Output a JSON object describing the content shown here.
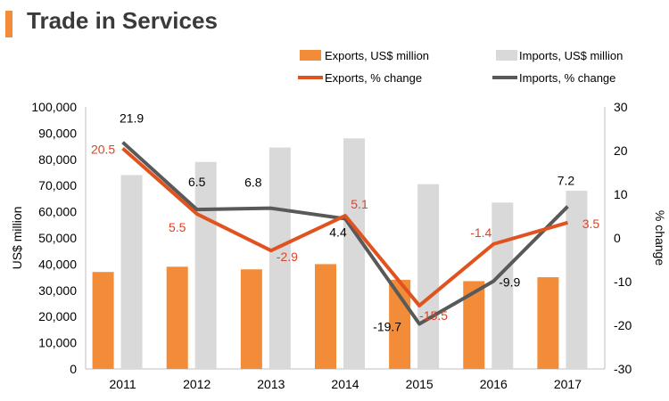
{
  "page_title": "Trade in Services",
  "colors": {
    "accent": "#f28c38",
    "exports_bar": "#f28c38",
    "imports_bar": "#d9d9d9",
    "exports_line": "#e0531f",
    "imports_line": "#595959",
    "exports_label": "#d9442b",
    "imports_label": "#000000"
  },
  "chart_data": {
    "type": "bar",
    "title": "Trade in Services",
    "categories": [
      "2011",
      "2012",
      "2013",
      "2014",
      "2015",
      "2016",
      "2017"
    ],
    "series": [
      {
        "name": "Exports, US$ million",
        "kind": "bar",
        "axis": "left",
        "values": [
          37000,
          39000,
          38000,
          40000,
          34000,
          33500,
          35000
        ]
      },
      {
        "name": "Imports, US$ million",
        "kind": "bar",
        "axis": "left",
        "values": [
          74000,
          79000,
          84500,
          88000,
          70500,
          63500,
          68000
        ]
      },
      {
        "name": "Exports, % change",
        "kind": "line",
        "axis": "right",
        "values": [
          20.5,
          5.5,
          -2.9,
          5.1,
          -15.5,
          -1.4,
          3.5
        ],
        "labels": [
          "20.5",
          "5.5",
          "-2.9",
          "5.1",
          "-15.5",
          "-1.4",
          "3.5"
        ]
      },
      {
        "name": "Imports, % change",
        "kind": "line",
        "axis": "right",
        "values": [
          21.9,
          6.5,
          6.8,
          4.4,
          -19.7,
          -9.9,
          7.2
        ],
        "labels": [
          "21.9",
          "6.5",
          "6.8",
          "4.4",
          "-19.7",
          "-9.9",
          "7.2"
        ]
      }
    ],
    "ylabel": "US$ million",
    "y2label": "% change",
    "ylim": [
      0,
      100000
    ],
    "y2lim": [
      -30,
      30
    ],
    "yticks": [
      "0",
      "10,000",
      "20,000",
      "30,000",
      "40,000",
      "50,000",
      "60,000",
      "70,000",
      "80,000",
      "90,000",
      "100,000"
    ],
    "y2ticks": [
      "-30",
      "-20",
      "-10",
      "0",
      "10",
      "20",
      "30"
    ],
    "legend_position": "top-right"
  }
}
